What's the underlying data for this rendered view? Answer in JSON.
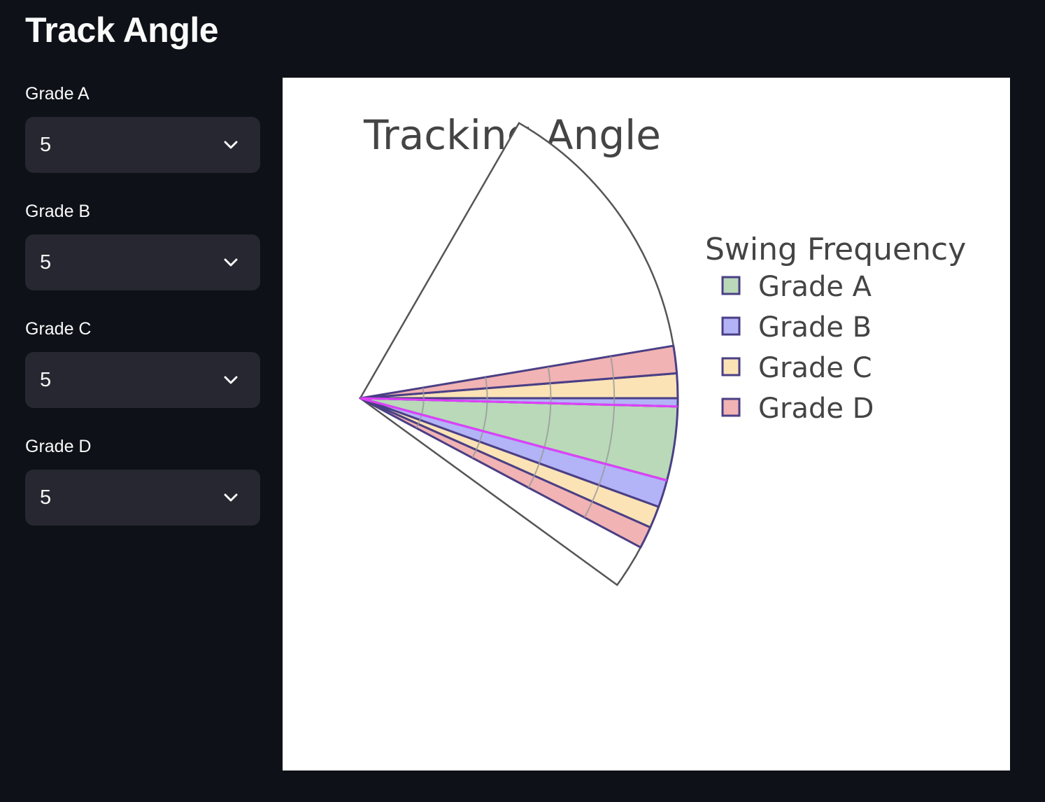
{
  "app": {
    "title": "Track Angle"
  },
  "controls": [
    {
      "label": "Grade A",
      "value": "5"
    },
    {
      "label": "Grade B",
      "value": "5"
    },
    {
      "label": "Grade C",
      "value": "5"
    },
    {
      "label": "Grade D",
      "value": "5"
    }
  ],
  "icons": {
    "dropdown": "chevron-down-icon"
  },
  "chart_data": {
    "type": "barpolar",
    "title": "Tracking Angle",
    "legend_title": "Swing Frequency",
    "legend_position": "right",
    "sector_degrees": [
      -36,
      60
    ],
    "radial_range": [
      0,
      5
    ],
    "radial_gridlines": [
      1,
      2,
      3,
      4
    ],
    "series": [
      {
        "name": "Grade A",
        "color": "#b9d9b9",
        "wedges": [
          {
            "r": 5,
            "theta_from": -15,
            "theta_to": -1.5
          }
        ]
      },
      {
        "name": "Grade B",
        "color": "#b3b3f7",
        "wedges": [
          {
            "r": 5,
            "theta_from": -20,
            "theta_to": -15
          },
          {
            "r": 5,
            "theta_from": -1.5,
            "theta_to": 0
          }
        ]
      },
      {
        "name": "Grade C",
        "color": "#fbe3b6",
        "wedges": [
          {
            "r": 5,
            "theta_from": -24,
            "theta_to": -20
          },
          {
            "r": 5,
            "theta_from": 0,
            "theta_to": 4.5
          }
        ]
      },
      {
        "name": "Grade D",
        "color": "#f1b3b3",
        "wedges": [
          {
            "r": 5,
            "theta_from": -28,
            "theta_to": -24
          },
          {
            "r": 5,
            "theta_from": 4.5,
            "theta_to": 9.5
          }
        ]
      }
    ],
    "highlight_lines": [
      {
        "theta": -15,
        "color": "#e040fb"
      },
      {
        "theta": -1.5,
        "color": "#e040fb"
      }
    ],
    "colors": {
      "outline": "#4a3f85",
      "sector": "#555555",
      "grid": "#999999"
    }
  }
}
